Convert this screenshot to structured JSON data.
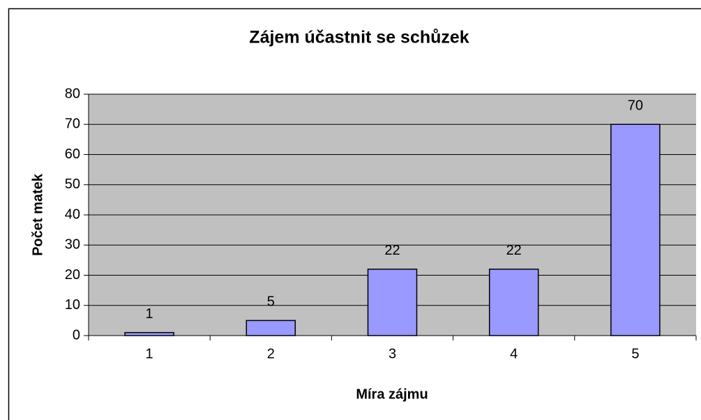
{
  "chart_data": {
    "type": "bar",
    "title": "Zájem účastnit se schůzek",
    "x_label": "Míra zájmu",
    "y_label": "Počet matek",
    "categories": [
      "1",
      "2",
      "3",
      "4",
      "5"
    ],
    "values": [
      1,
      5,
      22,
      22,
      70
    ],
    "color": "#9999ff",
    "ylim": [
      0,
      80
    ],
    "yticks": [
      0,
      10,
      20,
      30,
      40,
      50,
      60,
      70,
      80
    ],
    "grid": true
  }
}
